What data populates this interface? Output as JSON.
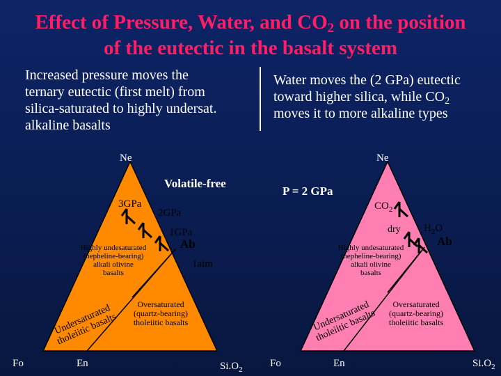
{
  "title": {
    "line1_pre": "Effect of Pressure, Water, and CO",
    "line1_sub": "2",
    "line1_post": " on the position",
    "line2": "of the eutectic in the basalt system"
  },
  "left_caption": {
    "line1": "Increased pressure moves the",
    "line2": "ternary eutectic (first melt) from",
    "line3": "silica-saturated to highly undersat.",
    "line4": "alkaline basalts"
  },
  "right_caption": {
    "line1": "Water moves the (2 GPa) eutectic",
    "line2_pre": "toward higher silica, while CO",
    "line2_sub": "2",
    "line3": "moves it to more alkaline types"
  },
  "left_diagram": {
    "apex": "Ne",
    "bottom_left": "Fo",
    "bottom_mid": "En",
    "bottom_right_pre": "Si.O",
    "bottom_right_sub": "2",
    "condition": "Volatile-free",
    "pressure_labels": [
      "3GPa",
      "2GPa",
      "1GPa",
      "1atm"
    ],
    "ab_label": "Ab",
    "field_highly": [
      "Highly undesaturated",
      "(nepheline-bearing)",
      "alkali olivine",
      "basalts"
    ],
    "field_under": [
      "Undersaturated",
      "tholeiitic basalts"
    ],
    "field_over": [
      "Oversaturated",
      "(quartz-bearing)",
      "tholeiitic basalts"
    ],
    "fill_color": "#ff8a00"
  },
  "right_diagram": {
    "apex": "Ne",
    "bottom_left": "Fo",
    "bottom_mid": "En",
    "bottom_right_pre": "Si.O",
    "bottom_right_sub": "2",
    "condition": "P = 2 GPa",
    "co2_pre": "CO",
    "co2_sub": "2",
    "dry": "dry",
    "h2o_pre": "H",
    "h2o_sub": "2",
    "h2o_post": "O",
    "ab_label": "Ab",
    "field_highly": [
      "Highly undesaturated",
      "(nepheline-bearing)",
      "alkali olivine",
      "basalts"
    ],
    "field_under": [
      "Undersaturated",
      "tholeiitic basalts"
    ],
    "field_over": [
      "Oversaturated",
      "(quartz-bearing)",
      "tholeiitic basalts"
    ],
    "fill_color": "#ff7fb2"
  }
}
